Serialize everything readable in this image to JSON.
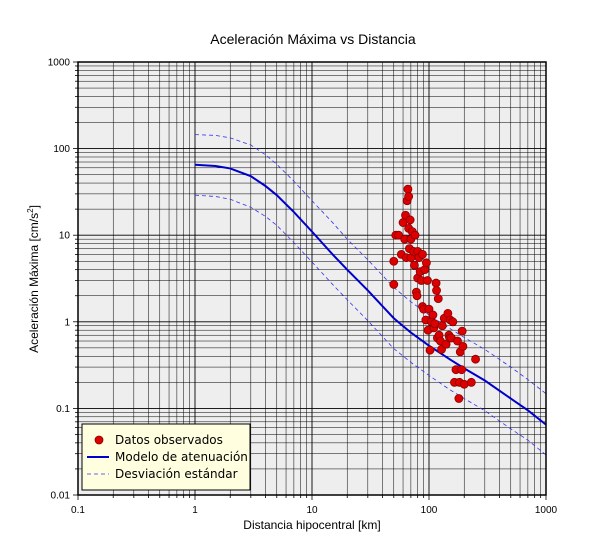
{
  "chart_data": {
    "type": "scatter",
    "title": "Aceleración Máxima vs Distancia",
    "xlabel": "Distancia hipocentral [km]",
    "ylabel_main": "Aceleración Máxima [cm/s",
    "ylabel_sup": "2",
    "ylabel_end": "]",
    "xscale": "log",
    "yscale": "log",
    "xlim": [
      0.1,
      1000
    ],
    "ylim": [
      0.01,
      1000
    ],
    "xticks": [
      {
        "value": 0.1,
        "label": "0.1"
      },
      {
        "value": 1,
        "label": "1"
      },
      {
        "value": 10,
        "label": "10"
      },
      {
        "value": 100,
        "label": "100"
      },
      {
        "value": 1000,
        "label": "1000"
      }
    ],
    "yticks": [
      {
        "value": 0.01,
        "label": "0.01"
      },
      {
        "value": 0.1,
        "label": "0.1"
      },
      {
        "value": 1,
        "label": "1"
      },
      {
        "value": 10,
        "label": "10"
      },
      {
        "value": 100,
        "label": "100"
      },
      {
        "value": 1000,
        "label": "1000"
      }
    ],
    "grid": true,
    "legend_position": "bottom-left",
    "colors": {
      "points": "#dd0000",
      "model": "#0000cc",
      "deviation": "#3333ee",
      "plot_bg": "#eeeeee",
      "legend_bg": "#ffffe0"
    },
    "legend": [
      {
        "label": "Datos observados",
        "kind": "points"
      },
      {
        "label": "Modelo de atenuación",
        "kind": "model"
      },
      {
        "label": "Desviación estándar",
        "kind": "deviation"
      }
    ],
    "model": {
      "x": [
        1,
        1.5,
        2,
        3,
        4,
        5,
        7,
        10,
        15,
        20,
        30,
        50,
        70,
        100,
        150,
        200,
        300,
        500,
        700,
        1000
      ],
      "y": [
        65,
        63,
        59,
        48,
        37,
        29,
        18.5,
        11,
        6,
        4,
        2.3,
        1.1,
        0.75,
        0.53,
        0.37,
        0.29,
        0.21,
        0.13,
        0.095,
        0.065
      ]
    },
    "deviation_upper": {
      "x": [
        1,
        1.5,
        2,
        3,
        4,
        5,
        7,
        10,
        15,
        20,
        30,
        50,
        70,
        100,
        150,
        200,
        300,
        500,
        700,
        1000
      ],
      "y": [
        145,
        142,
        133,
        110,
        85,
        66,
        42,
        25,
        14,
        9,
        5.2,
        2.5,
        1.7,
        1.2,
        0.84,
        0.66,
        0.48,
        0.3,
        0.215,
        0.148
      ]
    },
    "deviation_lower": {
      "x": [
        1,
        1.5,
        2,
        3,
        4,
        5,
        7,
        10,
        15,
        20,
        30,
        50,
        70,
        100,
        150,
        200,
        300,
        500,
        700,
        1000
      ],
      "y": [
        29,
        28,
        26,
        21,
        16.5,
        13,
        8.2,
        4.9,
        2.7,
        1.8,
        1.03,
        0.49,
        0.34,
        0.24,
        0.165,
        0.13,
        0.094,
        0.058,
        0.043,
        0.029
      ]
    },
    "points": [
      {
        "x": 50,
        "y": 2.7
      },
      {
        "x": 50,
        "y": 5.0
      },
      {
        "x": 52,
        "y": 10
      },
      {
        "x": 55,
        "y": 10
      },
      {
        "x": 58,
        "y": 6
      },
      {
        "x": 60,
        "y": 14
      },
      {
        "x": 62,
        "y": 9
      },
      {
        "x": 63,
        "y": 17
      },
      {
        "x": 64,
        "y": 5.5
      },
      {
        "x": 65,
        "y": 25
      },
      {
        "x": 66,
        "y": 34
      },
      {
        "x": 67,
        "y": 28
      },
      {
        "x": 67,
        "y": 12
      },
      {
        "x": 68,
        "y": 7
      },
      {
        "x": 69,
        "y": 15
      },
      {
        "x": 70,
        "y": 9
      },
      {
        "x": 70,
        "y": 5.5
      },
      {
        "x": 72,
        "y": 11
      },
      {
        "x": 74,
        "y": 6.5
      },
      {
        "x": 75,
        "y": 4.5
      },
      {
        "x": 76,
        "y": 10
      },
      {
        "x": 78,
        "y": 2.2
      },
      {
        "x": 79,
        "y": 2.0
      },
      {
        "x": 80,
        "y": 6.5
      },
      {
        "x": 80,
        "y": 3.2
      },
      {
        "x": 82,
        "y": 5.5
      },
      {
        "x": 84,
        "y": 3.8
      },
      {
        "x": 86,
        "y": 3.0
      },
      {
        "x": 88,
        "y": 6
      },
      {
        "x": 88,
        "y": 1.5
      },
      {
        "x": 90,
        "y": 1.4
      },
      {
        "x": 92,
        "y": 4.0
      },
      {
        "x": 94,
        "y": 1.05
      },
      {
        "x": 95,
        "y": 4.8
      },
      {
        "x": 97,
        "y": 3.0
      },
      {
        "x": 98,
        "y": 0.8
      },
      {
        "x": 100,
        "y": 1.4
      },
      {
        "x": 102,
        "y": 0.47
      },
      {
        "x": 105,
        "y": 1.0
      },
      {
        "x": 108,
        "y": 1.2
      },
      {
        "x": 110,
        "y": 0.85
      },
      {
        "x": 112,
        "y": 0.95
      },
      {
        "x": 115,
        "y": 2.8
      },
      {
        "x": 116,
        "y": 2.3
      },
      {
        "x": 118,
        "y": 0.65
      },
      {
        "x": 120,
        "y": 1.85
      },
      {
        "x": 122,
        "y": 0.7
      },
      {
        "x": 125,
        "y": 0.6
      },
      {
        "x": 128,
        "y": 0.48
      },
      {
        "x": 130,
        "y": 0.9
      },
      {
        "x": 135,
        "y": 1.1
      },
      {
        "x": 140,
        "y": 0.55
      },
      {
        "x": 145,
        "y": 1.25
      },
      {
        "x": 148,
        "y": 0.7
      },
      {
        "x": 150,
        "y": 0.65
      },
      {
        "x": 152,
        "y": 1.05
      },
      {
        "x": 155,
        "y": 0.65
      },
      {
        "x": 160,
        "y": 1.0
      },
      {
        "x": 165,
        "y": 0.2
      },
      {
        "x": 170,
        "y": 0.28
      },
      {
        "x": 175,
        "y": 0.6
      },
      {
        "x": 180,
        "y": 0.13
      },
      {
        "x": 182,
        "y": 0.2
      },
      {
        "x": 185,
        "y": 0.45
      },
      {
        "x": 190,
        "y": 0.28
      },
      {
        "x": 192,
        "y": 0.78
      },
      {
        "x": 195,
        "y": 0.52
      },
      {
        "x": 200,
        "y": 0.19
      },
      {
        "x": 230,
        "y": 0.2
      },
      {
        "x": 250,
        "y": 0.37
      }
    ]
  }
}
